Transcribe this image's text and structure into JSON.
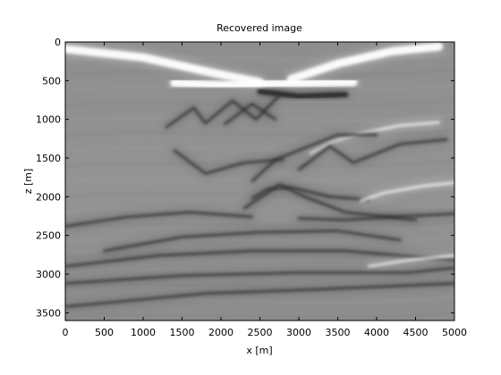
{
  "chart_data": {
    "type": "heatmap",
    "title": "Recovered image",
    "xlabel": "x [m]",
    "ylabel": "z [m]",
    "xlim": [
      0,
      5000
    ],
    "ylim": [
      3600,
      0
    ],
    "x_ticks": [
      0,
      500,
      1000,
      1500,
      2000,
      2500,
      3000,
      3500,
      4000,
      4500,
      5000
    ],
    "y_ticks": [
      0,
      500,
      1000,
      1500,
      2000,
      2500,
      3000,
      3500
    ],
    "colormap": "gray",
    "grid": false,
    "reflectors": [
      {
        "kind": "bright",
        "points": [
          [
            1400,
            530
          ],
          [
            2000,
            560
          ],
          [
            2600,
            540
          ],
          [
            3300,
            530
          ],
          [
            3700,
            520
          ]
        ]
      },
      {
        "kind": "bright",
        "points": [
          [
            0,
            90
          ],
          [
            1000,
            200
          ],
          [
            1900,
            400
          ],
          [
            2500,
            520
          ]
        ]
      },
      {
        "kind": "bright",
        "points": [
          [
            2900,
            480
          ],
          [
            3500,
            280
          ],
          [
            4200,
            120
          ],
          [
            4800,
            60
          ]
        ]
      },
      {
        "kind": "dark",
        "points": [
          [
            2500,
            640
          ],
          [
            3000,
            700
          ],
          [
            3600,
            680
          ]
        ]
      },
      {
        "kind": "dark",
        "points": [
          [
            1300,
            1100
          ],
          [
            1650,
            850
          ],
          [
            1800,
            1050
          ],
          [
            2150,
            760
          ],
          [
            2450,
            1000
          ],
          [
            2750,
            690
          ]
        ]
      },
      {
        "kind": "dark",
        "points": [
          [
            2050,
            1060
          ],
          [
            2400,
            800
          ],
          [
            2700,
            1000
          ]
        ]
      },
      {
        "kind": "bright",
        "points": [
          [
            3150,
            1440
          ],
          [
            3400,
            1300
          ],
          [
            3800,
            1180
          ],
          [
            4300,
            1080
          ],
          [
            4800,
            1040
          ]
        ]
      },
      {
        "kind": "dark",
        "points": [
          [
            3000,
            1650
          ],
          [
            3400,
            1350
          ],
          [
            3700,
            1560
          ],
          [
            4300,
            1320
          ],
          [
            4900,
            1260
          ]
        ]
      },
      {
        "kind": "dark",
        "points": [
          [
            2400,
            1800
          ],
          [
            2700,
            1520
          ],
          [
            3100,
            1360
          ],
          [
            3500,
            1200
          ],
          [
            4000,
            1200
          ]
        ]
      },
      {
        "kind": "dark",
        "points": [
          [
            1400,
            1400
          ],
          [
            1800,
            1700
          ],
          [
            2300,
            1560
          ],
          [
            2800,
            1520
          ]
        ]
      },
      {
        "kind": "dark",
        "points": [
          [
            2400,
            2020
          ],
          [
            2600,
            1900
          ],
          [
            2900,
            1880
          ],
          [
            3400,
            2000
          ],
          [
            3900,
            2040
          ]
        ]
      },
      {
        "kind": "dark",
        "points": [
          [
            2300,
            2150
          ],
          [
            2750,
            1840
          ],
          [
            3100,
            2010
          ],
          [
            3600,
            2200
          ],
          [
            4500,
            2300
          ]
        ]
      },
      {
        "kind": "bright",
        "points": [
          [
            3800,
            2050
          ],
          [
            4100,
            1950
          ],
          [
            4600,
            1860
          ],
          [
            5000,
            1820
          ]
        ]
      },
      {
        "kind": "dark",
        "points": [
          [
            3000,
            2280
          ],
          [
            3600,
            2300
          ],
          [
            4200,
            2260
          ],
          [
            5000,
            2220
          ]
        ]
      },
      {
        "kind": "dark",
        "points": [
          [
            0,
            2380
          ],
          [
            800,
            2260
          ],
          [
            1600,
            2200
          ],
          [
            2400,
            2260
          ]
        ]
      },
      {
        "kind": "dark",
        "points": [
          [
            500,
            2700
          ],
          [
            1500,
            2520
          ],
          [
            2500,
            2460
          ],
          [
            3500,
            2440
          ],
          [
            4300,
            2560
          ]
        ]
      },
      {
        "kind": "dark",
        "points": [
          [
            0,
            2900
          ],
          [
            1200,
            2760
          ],
          [
            2400,
            2700
          ],
          [
            3600,
            2700
          ],
          [
            5000,
            2820
          ]
        ]
      },
      {
        "kind": "bright",
        "points": [
          [
            3900,
            2900
          ],
          [
            4400,
            2820
          ],
          [
            5000,
            2760
          ]
        ]
      },
      {
        "kind": "dark",
        "points": [
          [
            0,
            3120
          ],
          [
            1500,
            3020
          ],
          [
            3000,
            2980
          ],
          [
            4400,
            2980
          ],
          [
            5000,
            2920
          ]
        ]
      },
      {
        "kind": "dark",
        "points": [
          [
            0,
            3420
          ],
          [
            1800,
            3250
          ],
          [
            3200,
            3200
          ],
          [
            5000,
            3120
          ]
        ]
      }
    ]
  }
}
